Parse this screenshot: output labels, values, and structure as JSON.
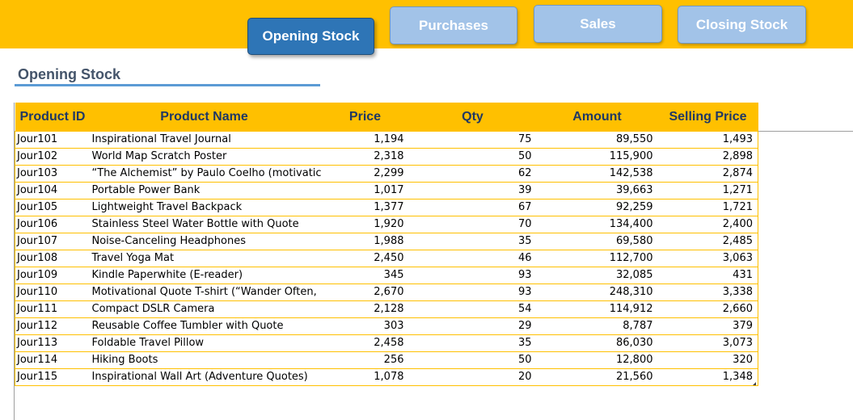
{
  "nav": {
    "opening_stock": "Opening Stock",
    "purchases": "Purchases",
    "sales": "Sales",
    "closing_stock": "Closing Stock"
  },
  "section": {
    "title": "Opening Stock"
  },
  "table": {
    "headers": [
      "Product ID",
      "Product Name",
      "Price",
      "Qty",
      "Amount",
      "Selling Price"
    ],
    "rows": [
      [
        "Jour101",
        "Inspirational Travel Journal",
        "1,194",
        "75",
        "89,550",
        "1,493"
      ],
      [
        "Jour102",
        "World Map Scratch Poster",
        "2,318",
        "50",
        "115,900",
        "2,898"
      ],
      [
        "Jour103",
        "“The Alchemist” by Paulo Coelho (motivatic",
        "2,299",
        "62",
        "142,538",
        "2,874"
      ],
      [
        "Jour104",
        "Portable Power Bank",
        "1,017",
        "39",
        "39,663",
        "1,271"
      ],
      [
        "Jour105",
        "Lightweight Travel Backpack",
        "1,377",
        "67",
        "92,259",
        "1,721"
      ],
      [
        "Jour106",
        "Stainless Steel Water Bottle with Quote",
        "1,920",
        "70",
        "134,400",
        "2,400"
      ],
      [
        "Jour107",
        "Noise-Canceling Headphones",
        "1,988",
        "35",
        "69,580",
        "2,485"
      ],
      [
        "Jour108",
        "Travel Yoga Mat",
        "2,450",
        "46",
        "112,700",
        "3,063"
      ],
      [
        "Jour109",
        "Kindle Paperwhite (E-reader)",
        "345",
        "93",
        "32,085",
        "431"
      ],
      [
        "Jour110",
        "Motivational Quote T-shirt (“Wander Often,",
        "2,670",
        "93",
        "248,310",
        "3,338"
      ],
      [
        "Jour111",
        "Compact DSLR Camera",
        "2,128",
        "54",
        "114,912",
        "2,660"
      ],
      [
        "Jour112",
        "Reusable Coffee Tumbler with Quote",
        "303",
        "29",
        "8,787",
        "379"
      ],
      [
        "Jour113",
        "Foldable Travel Pillow",
        "2,458",
        "35",
        "86,030",
        "3,073"
      ],
      [
        "Jour114",
        "Hiking Boots",
        "256",
        "50",
        "12,800",
        "320"
      ],
      [
        "Jour115",
        "Inspirational Wall Art (Adventure Quotes)",
        "1,078",
        "20",
        "21,560",
        "1,348"
      ]
    ]
  },
  "colors": {
    "banner": "#FFC000",
    "active_button": "#2E75B6",
    "inactive_button": "#A2C3E8",
    "header_text": "#1F3864"
  }
}
